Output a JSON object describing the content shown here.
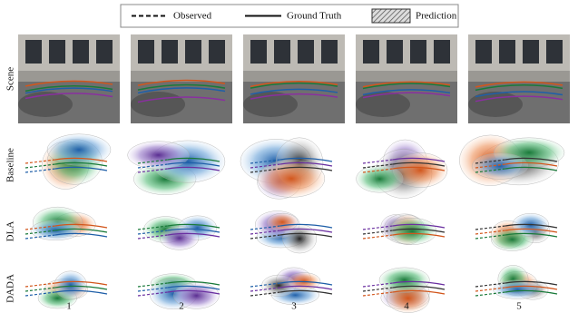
{
  "legend": {
    "items": [
      "Observed",
      "Ground Truth",
      "Prediction"
    ]
  },
  "rows": [
    "Scene",
    "Baseline",
    "DLA",
    "DADA"
  ],
  "columns": [
    "1",
    "2",
    "3",
    "4",
    "5"
  ]
}
